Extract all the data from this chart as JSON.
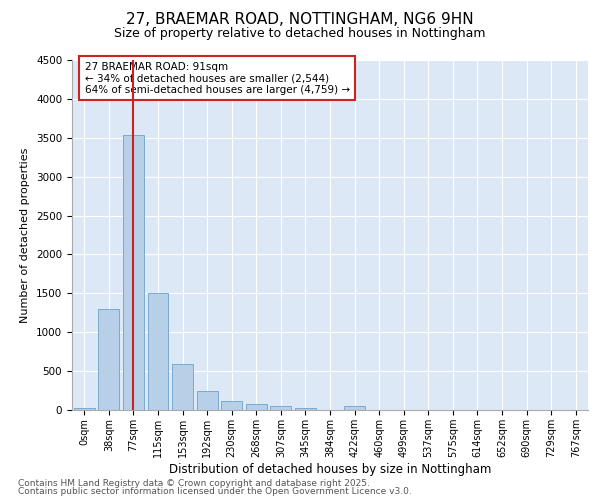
{
  "title_line1": "27, BRAEMAR ROAD, NOTTINGHAM, NG6 9HN",
  "title_line2": "Size of property relative to detached houses in Nottingham",
  "xlabel": "Distribution of detached houses by size in Nottingham",
  "ylabel": "Number of detached properties",
  "bar_labels": [
    "0sqm",
    "38sqm",
    "77sqm",
    "115sqm",
    "153sqm",
    "192sqm",
    "230sqm",
    "268sqm",
    "307sqm",
    "345sqm",
    "384sqm",
    "422sqm",
    "460sqm",
    "499sqm",
    "537sqm",
    "575sqm",
    "614sqm",
    "652sqm",
    "690sqm",
    "729sqm",
    "767sqm"
  ],
  "bar_values": [
    30,
    1300,
    3530,
    1500,
    590,
    240,
    115,
    75,
    50,
    30,
    0,
    50,
    0,
    0,
    0,
    0,
    0,
    0,
    0,
    0,
    0
  ],
  "bar_color": "#b8cfe8",
  "bar_edge_color": "#7aaad0",
  "highlight_color": "#cc2222",
  "vline_bar_index": 2,
  "annotation_text": "27 BRAEMAR ROAD: 91sqm\n← 34% of detached houses are smaller (2,544)\n64% of semi-detached houses are larger (4,759) →",
  "annotation_box_color": "#ffffff",
  "annotation_box_edge": "#cc2222",
  "ylim": [
    0,
    4500
  ],
  "yticks": [
    0,
    500,
    1000,
    1500,
    2000,
    2500,
    3000,
    3500,
    4000,
    4500
  ],
  "background_color": "#dce8f5",
  "grid_color": "#c8d8e8",
  "footer_line1": "Contains HM Land Registry data © Crown copyright and database right 2025.",
  "footer_line2": "Contains public sector information licensed under the Open Government Licence v3.0.",
  "title_fontsize": 11,
  "subtitle_fontsize": 9,
  "axis_label_fontsize": 8,
  "tick_fontsize": 7,
  "annotation_fontsize": 7.5,
  "footer_fontsize": 6.5
}
